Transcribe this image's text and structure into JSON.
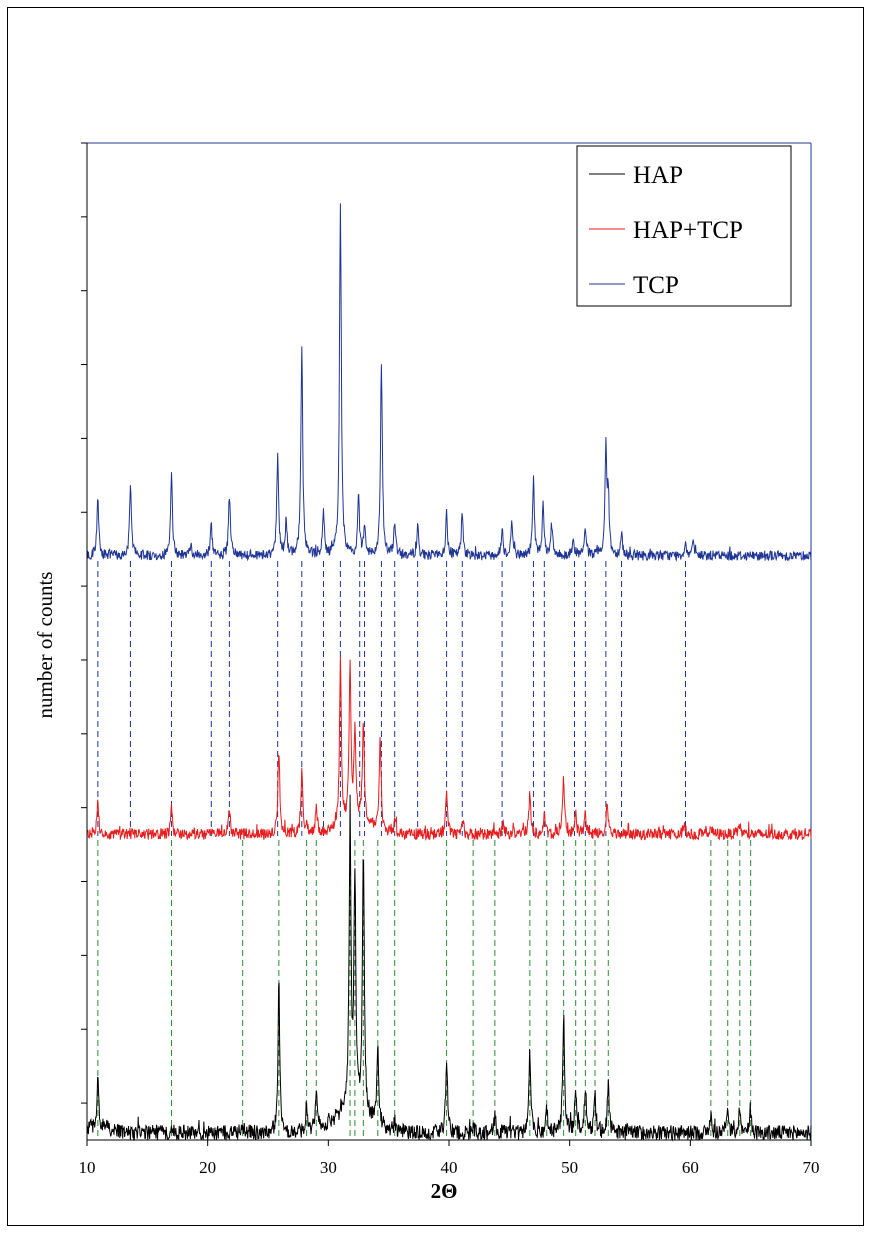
{
  "chart_data": {
    "type": "line",
    "title": "",
    "xlabel": "2Θ",
    "ylabel": "number of counts",
    "xlim": [
      10,
      70
    ],
    "x_ticks": [
      10,
      20,
      30,
      40,
      50,
      60,
      70
    ],
    "y_tick_labels": "none",
    "grid": false,
    "legend": {
      "position": "top-right",
      "entries": [
        "HAP",
        "HAP+TCP",
        "TCP"
      ]
    },
    "series": [
      {
        "name": "HAP",
        "color": "#000000",
        "baseline": 0,
        "peaks": [
          [
            10.9,
            0.13
          ],
          [
            17,
            0.02
          ],
          [
            22.9,
            0.02
          ],
          [
            25.9,
            0.43
          ],
          [
            28.2,
            0.08
          ],
          [
            29,
            0.1
          ],
          [
            31.8,
            0.85
          ],
          [
            32.2,
            0.68
          ],
          [
            32.9,
            0.77
          ],
          [
            34.1,
            0.22
          ],
          [
            35.5,
            0.03
          ],
          [
            39.8,
            0.21
          ],
          [
            42,
            0.02
          ],
          [
            43.8,
            0.05
          ],
          [
            46.7,
            0.23
          ],
          [
            48.1,
            0.07
          ],
          [
            49.5,
            0.34
          ],
          [
            50.5,
            0.13
          ],
          [
            51.3,
            0.14
          ],
          [
            52.1,
            0.11
          ],
          [
            53.2,
            0.14
          ],
          [
            61.7,
            0.05
          ],
          [
            63.1,
            0.06
          ],
          [
            64.1,
            0.08
          ],
          [
            65,
            0.06
          ]
        ]
      },
      {
        "name": "HAP+TCP",
        "color": "#e81c1c",
        "baseline": 0,
        "peaks": [
          [
            10.9,
            0.13
          ],
          [
            17,
            0.1
          ],
          [
            21.8,
            0.09
          ],
          [
            25.9,
            0.33
          ],
          [
            27.8,
            0.24
          ],
          [
            28.2,
            0.05
          ],
          [
            29,
            0.11
          ],
          [
            31,
            0.65
          ],
          [
            31.8,
            0.62
          ],
          [
            32.2,
            0.35
          ],
          [
            32.9,
            0.4
          ],
          [
            34.3,
            0.38
          ],
          [
            35.5,
            0.05
          ],
          [
            39.8,
            0.16
          ],
          [
            41.1,
            0.05
          ],
          [
            44.5,
            0.05
          ],
          [
            46.7,
            0.17
          ],
          [
            47.9,
            0.07
          ],
          [
            49.5,
            0.22
          ],
          [
            50.5,
            0.08
          ],
          [
            51.3,
            0.08
          ],
          [
            53.1,
            0.14
          ],
          [
            59.5,
            0.05
          ],
          [
            61.7,
            0.03
          ],
          [
            64.1,
            0.04
          ]
        ]
      },
      {
        "name": "TCP",
        "color": "#1f3596",
        "baseline": 0,
        "peaks": [
          [
            10.9,
            0.26
          ],
          [
            13.6,
            0.32
          ],
          [
            17,
            0.37
          ],
          [
            18.6,
            0.05
          ],
          [
            20.3,
            0.13
          ],
          [
            21.8,
            0.26
          ],
          [
            25.8,
            0.45
          ],
          [
            26.5,
            0.15
          ],
          [
            27.8,
            0.92
          ],
          [
            29.6,
            0.19
          ],
          [
            31,
            1.55
          ],
          [
            32.5,
            0.26
          ],
          [
            33,
            0.13
          ],
          [
            34.4,
            0.85
          ],
          [
            35.5,
            0.15
          ],
          [
            37.4,
            0.13
          ],
          [
            39.8,
            0.18
          ],
          [
            41.1,
            0.19
          ],
          [
            44.4,
            0.12
          ],
          [
            45.2,
            0.15
          ],
          [
            47,
            0.34
          ],
          [
            47.8,
            0.23
          ],
          [
            48.5,
            0.14
          ],
          [
            50.3,
            0.09
          ],
          [
            51.3,
            0.12
          ],
          [
            53,
            0.47
          ],
          [
            53.2,
            0.25
          ],
          [
            54.3,
            0.1
          ],
          [
            59.6,
            0.06
          ],
          [
            60.2,
            0.06
          ]
        ]
      }
    ],
    "reference_lines": [
      {
        "between": [
          "HAP+TCP",
          "TCP"
        ],
        "color": "#1f3596",
        "x": [
          10.9,
          13.6,
          17,
          20.3,
          21.8,
          25.8,
          27.8,
          29.6,
          31,
          32.6,
          33,
          34.4,
          35.5,
          37.4,
          39.8,
          41.1,
          44.4,
          47,
          47.9,
          50.4,
          51.3,
          53,
          54.3,
          59.6
        ]
      },
      {
        "between": [
          "HAP",
          "HAP+TCP"
        ],
        "color": "#2e8b3a",
        "x": [
          10.9,
          17,
          22.9,
          25.9,
          28.2,
          29,
          31.8,
          32.2,
          32.9,
          34.1,
          35.5,
          39.8,
          42,
          43.8,
          46.7,
          48.1,
          49.5,
          50.5,
          51.3,
          52.1,
          53.2,
          61.7,
          63.1,
          64.1,
          65
        ]
      }
    ]
  }
}
